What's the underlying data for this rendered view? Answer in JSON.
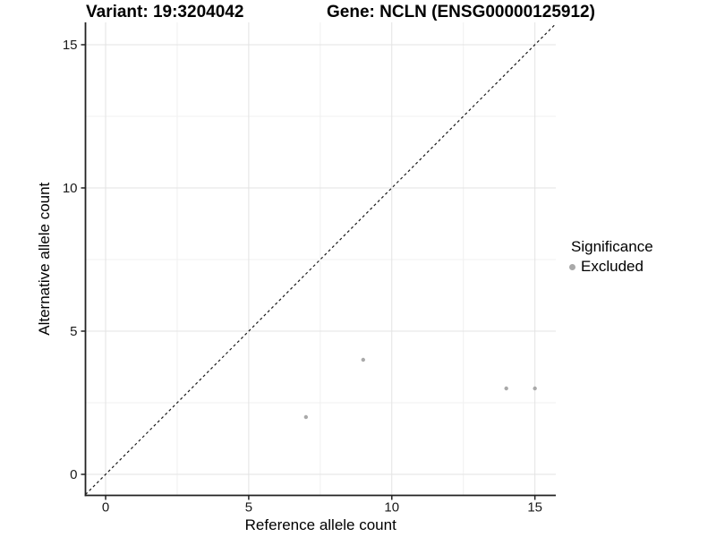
{
  "header": {
    "left_title": "Variant: 19:3204042",
    "right_title": "Gene: NCLN (ENSG00000125912)"
  },
  "legend": {
    "title": "Significance",
    "items": [
      {
        "label": "Excluded",
        "color": "#a9a9a9"
      }
    ]
  },
  "chart_data": {
    "type": "scatter",
    "xlabel": "Reference allele count",
    "ylabel": "Alternative allele count",
    "xlim": [
      -0.704,
      15.73
    ],
    "ylim": [
      -0.734,
      15.78
    ],
    "xticks": [
      0,
      5,
      10,
      15
    ],
    "yticks": [
      0,
      5,
      10,
      15
    ],
    "minor_xticks": [
      2.5,
      7.5,
      12.5
    ],
    "minor_yticks": [
      2.5,
      7.5,
      12.5
    ],
    "grid": true,
    "legend_position": "right",
    "identity_line": {
      "style": "dashed",
      "dash": "3,3",
      "color": "#1a1a1a"
    },
    "series": [
      {
        "name": "Excluded",
        "color": "#a9a9a9",
        "points": [
          [
            7,
            2
          ],
          [
            9,
            4
          ],
          [
            14,
            3
          ],
          [
            15,
            3
          ]
        ]
      }
    ],
    "colors": {
      "background": "#ffffff",
      "grid_major": "#e3e3e3",
      "grid_minor": "#f0f0f0",
      "axis": "#222222",
      "tick_label": "#1a1a1a",
      "axis_title": "#000000"
    }
  }
}
